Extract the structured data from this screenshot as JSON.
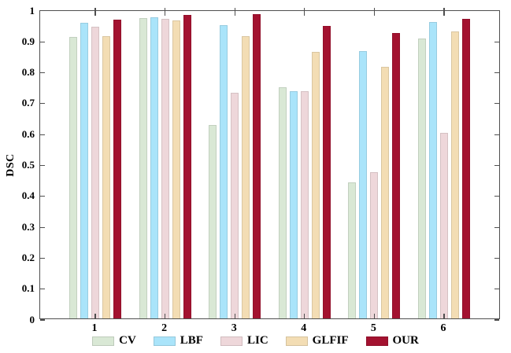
{
  "chart_data": {
    "type": "bar",
    "title": "",
    "xlabel": "",
    "ylabel": "DSC",
    "categories": [
      "1",
      "2",
      "3",
      "4",
      "5",
      "6"
    ],
    "series": [
      {
        "name": "CV",
        "color": "#d9e8d5",
        "values": [
          0.91,
          0.972,
          0.625,
          0.748,
          0.44,
          0.907
        ]
      },
      {
        "name": "LBF",
        "color": "#aae4fa",
        "values": [
          0.956,
          0.975,
          0.95,
          0.736,
          0.865,
          0.959
        ]
      },
      {
        "name": "LIC",
        "color": "#eed7da",
        "values": [
          0.945,
          0.969,
          0.73,
          0.735,
          0.474,
          0.6
        ]
      },
      {
        "name": "GLFIF",
        "color": "#f3ddb4",
        "values": [
          0.913,
          0.964,
          0.913,
          0.862,
          0.814,
          0.928
        ]
      },
      {
        "name": "OUR",
        "color": "#a31230",
        "values": [
          0.967,
          0.981,
          0.985,
          0.947,
          0.923,
          0.969
        ]
      }
    ],
    "ylim": [
      0,
      1
    ],
    "yticks": [
      0,
      0.1,
      0.2,
      0.3,
      0.4,
      0.5,
      0.6,
      0.7,
      0.8,
      0.9,
      1
    ],
    "ytick_labels": [
      "0",
      "0.1",
      "0.2",
      "0.3",
      "0.4",
      "0.5",
      "0.6",
      "0.7",
      "0.8",
      "0.9",
      "1"
    ],
    "legend_position": "bottom",
    "grid": false,
    "axis_color": "#4f4f4f"
  }
}
